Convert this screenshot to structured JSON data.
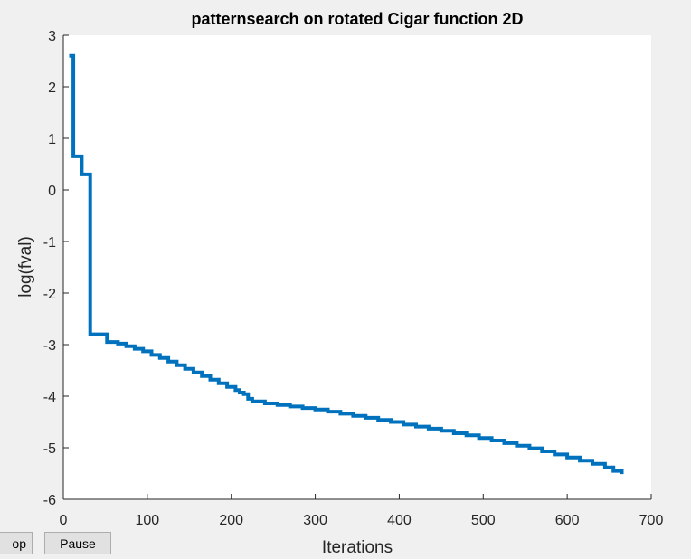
{
  "chart_data": {
    "type": "line",
    "title": "patternsearch on rotated Cigar function 2D",
    "xlabel": "Iterations",
    "ylabel": "log(fval)",
    "xlim": [
      0,
      700
    ],
    "ylim": [
      -6,
      3
    ],
    "xticks": [
      "0",
      "100",
      "200",
      "300",
      "400",
      "500",
      "600",
      "700"
    ],
    "yticks": [
      "3",
      "2",
      "1",
      "0",
      "-1",
      "-2",
      "-3",
      "-4",
      "-5",
      "-6"
    ],
    "grid": false,
    "line_color": "#0072bd",
    "series": [
      {
        "x": [
          7,
          10,
          12,
          18,
          22,
          24,
          30,
          32,
          35,
          50,
          52,
          65,
          75,
          85,
          95,
          105,
          115,
          125,
          135,
          145,
          155,
          165,
          175,
          185,
          195,
          205,
          210,
          215,
          220,
          225,
          240,
          255,
          270,
          285,
          300,
          315,
          330,
          345,
          360,
          375,
          390,
          405,
          420,
          435,
          450,
          465,
          480,
          495,
          510,
          525,
          540,
          555,
          570,
          585,
          600,
          615,
          630,
          645,
          655,
          665
        ],
        "y": [
          2.6,
          2.6,
          0.65,
          0.65,
          0.3,
          0.3,
          0.3,
          -2.8,
          -2.8,
          -2.8,
          -2.95,
          -2.98,
          -3.03,
          -3.08,
          -3.13,
          -3.2,
          -3.26,
          -3.33,
          -3.4,
          -3.47,
          -3.54,
          -3.61,
          -3.68,
          -3.75,
          -3.82,
          -3.88,
          -3.93,
          -3.96,
          -4.05,
          -4.1,
          -4.14,
          -4.17,
          -4.2,
          -4.23,
          -4.26,
          -4.3,
          -4.34,
          -4.38,
          -4.42,
          -4.46,
          -4.5,
          -4.55,
          -4.59,
          -4.63,
          -4.67,
          -4.72,
          -4.76,
          -4.81,
          -4.86,
          -4.91,
          -4.96,
          -5.01,
          -5.07,
          -5.13,
          -5.19,
          -5.25,
          -5.31,
          -5.38,
          -5.45,
          -5.51
        ]
      }
    ]
  },
  "controls": {
    "stop_label": "op",
    "pause_label": "Pause"
  }
}
